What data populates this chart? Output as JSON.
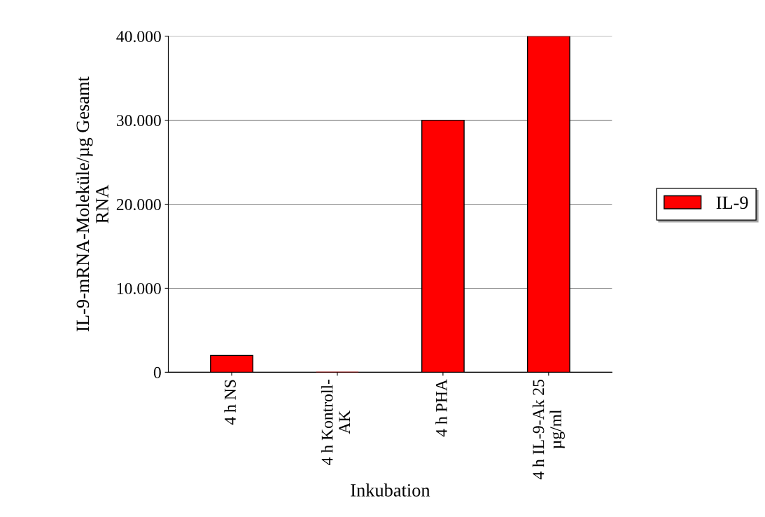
{
  "chart_data": {
    "type": "bar",
    "xlabel": "Inkubation",
    "ylabel": "IL-9-mRNA-Moleküle/µg Gesamt\nRNA",
    "categories": [
      "4 h NS",
      "4 h Kontroll-\nAK",
      "4 h PHA",
      "4 h IL-9-Ak 25\nµg/ml"
    ],
    "series": [
      {
        "name": "IL-9",
        "color": "#ff0000",
        "values": [
          2000,
          0,
          30000,
          40000
        ]
      }
    ],
    "ylim": [
      0,
      40000
    ],
    "yticks": [
      {
        "value": 0,
        "label": "0"
      },
      {
        "value": 10000,
        "label": "10.000"
      },
      {
        "value": 20000,
        "label": "20.000"
      },
      {
        "value": 30000,
        "label": "30.000"
      },
      {
        "value": 40000,
        "label": "40.000"
      }
    ],
    "grid": "y",
    "legend": "right"
  }
}
